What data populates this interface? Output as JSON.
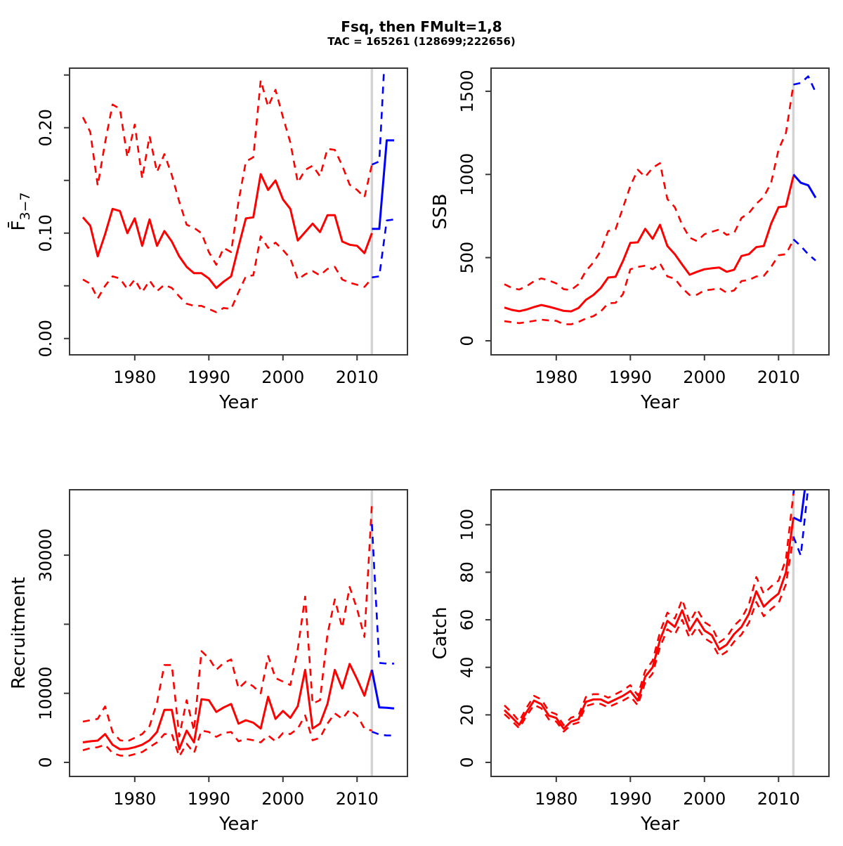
{
  "header": {
    "title": "Fsq, then FMult=1,8",
    "subtitle": "TAC = 165261 (128699;222656)"
  },
  "colors": {
    "history": "#ff0000",
    "forecast": "#0000ff",
    "divider": "#d3d3d3",
    "frame": "#383838"
  },
  "forecast_start_year": 2012,
  "chart_data": [
    {
      "type": "line",
      "name": "fbar",
      "panel": "top-left",
      "ylabel_main": "F̄",
      "ylabel_sub": "3−7",
      "xlabel": "Year",
      "xlim": [
        1971.2,
        2016.8
      ],
      "ylim": [
        -0.0155,
        0.2565
      ],
      "xticks": [
        1980,
        1990,
        2000,
        2010
      ],
      "yticks": [
        0,
        0.05,
        0.1,
        0.15,
        0.2,
        0.25
      ],
      "ytick_labels": [
        "0.00",
        "",
        "0.10",
        "",
        "0.20",
        ""
      ],
      "vline_year": 2012,
      "x_history": {
        "start": 1973,
        "end": 2012
      },
      "x_forecast": {
        "start": 2012,
        "end": 2015
      },
      "series": {
        "median_history": [
          0.115,
          0.107,
          0.078,
          0.099,
          0.123,
          0.121,
          0.1,
          0.114,
          0.088,
          0.113,
          0.088,
          0.102,
          0.092,
          0.078,
          0.068,
          0.062,
          0.062,
          0.057,
          0.048,
          0.054,
          0.059,
          0.087,
          0.114,
          0.115,
          0.156,
          0.141,
          0.15,
          0.132,
          0.123,
          0.093,
          0.101,
          0.109,
          0.101,
          0.117,
          0.117,
          0.092,
          0.089,
          0.088,
          0.081,
          0.1
        ],
        "upper_history": [
          0.21,
          0.196,
          0.145,
          0.186,
          0.222,
          0.218,
          0.172,
          0.203,
          0.152,
          0.192,
          0.158,
          0.175,
          0.155,
          0.13,
          0.108,
          0.105,
          0.1,
          0.082,
          0.07,
          0.086,
          0.082,
          0.13,
          0.168,
          0.172,
          0.245,
          0.22,
          0.236,
          0.21,
          0.186,
          0.148,
          0.16,
          0.164,
          0.154,
          0.18,
          0.179,
          0.164,
          0.146,
          0.141,
          0.134,
          0.165
        ],
        "lower_history": [
          0.056,
          0.052,
          0.038,
          0.05,
          0.059,
          0.057,
          0.047,
          0.056,
          0.044,
          0.055,
          0.045,
          0.051,
          0.048,
          0.04,
          0.033,
          0.031,
          0.031,
          0.028,
          0.025,
          0.029,
          0.028,
          0.044,
          0.059,
          0.06,
          0.097,
          0.086,
          0.091,
          0.084,
          0.076,
          0.056,
          0.061,
          0.064,
          0.06,
          0.066,
          0.068,
          0.056,
          0.053,
          0.051,
          0.049,
          0.057
        ],
        "median_forecast": [
          0.104,
          0.104,
          0.188,
          0.188
        ],
        "upper_forecast": [
          0.165,
          0.168,
          0.305,
          0.305
        ],
        "lower_forecast": [
          0.058,
          0.059,
          0.112,
          0.113
        ]
      }
    },
    {
      "type": "line",
      "name": "ssb",
      "panel": "top-right",
      "ylabel_main": "SSB",
      "ylabel_sub": "",
      "xlabel": "Year",
      "xlim": [
        1971.2,
        2016.8
      ],
      "ylim": [
        -84.5,
        1639
      ],
      "xticks": [
        1980,
        1990,
        2000,
        2010
      ],
      "yticks": [
        0,
        500,
        1000,
        1500
      ],
      "ytick_labels": [
        "0",
        "500",
        "1000",
        "1500"
      ],
      "vline_year": 2012,
      "x_history": {
        "start": 1973,
        "end": 2012
      },
      "x_forecast": {
        "start": 2012,
        "end": 2015
      },
      "series": {
        "median_history": [
          200,
          186,
          178,
          188,
          203,
          215,
          205,
          193,
          180,
          177,
          197,
          246,
          275,
          317,
          380,
          385,
          480,
          589,
          592,
          673,
          613,
          697,
          570,
          521,
          458,
          397,
          415,
          430,
          436,
          440,
          415,
          427,
          510,
          521,
          563,
          570,
          704,
          803,
          808,
          990
        ],
        "upper_history": [
          340,
          318,
          308,
          328,
          358,
          375,
          363,
          345,
          310,
          305,
          340,
          420,
          470,
          540,
          660,
          670,
          800,
          930,
          1028,
          985,
          1040,
          1068,
          852,
          803,
          697,
          620,
          599,
          641,
          655,
          669,
          637,
          648,
          739,
          768,
          824,
          865,
          950,
          1150,
          1250,
          1540
        ],
        "lower_history": [
          118,
          112,
          106,
          112,
          120,
          127,
          122,
          120,
          100,
          99,
          113,
          134,
          148,
          176,
          225,
          228,
          280,
          430,
          444,
          451,
          430,
          465,
          387,
          373,
          317,
          275,
          277,
          303,
          308,
          317,
          289,
          303,
          359,
          366,
          387,
          390,
          444,
          514,
          521,
          606
        ],
        "median_forecast": [
          1000,
          950,
          935,
          860
        ],
        "upper_forecast": [
          1540,
          1550,
          1590,
          1495
        ],
        "lower_forecast": [
          610,
          570,
          520,
          483
        ]
      }
    },
    {
      "type": "line",
      "name": "recruitment",
      "panel": "bottom-left",
      "ylabel_main": "Recruitment",
      "ylabel_sub": "",
      "xlabel": "Year",
      "xlim": [
        1971.2,
        2016.8
      ],
      "ylim": [
        -2035,
        39471
      ],
      "xticks": [
        1980,
        1990,
        2000,
        2010
      ],
      "yticks": [
        0,
        10000,
        20000,
        30000
      ],
      "ytick_labels": [
        "0",
        "10000",
        "",
        "30000"
      ],
      "vline_year": 2012,
      "x_history": {
        "start": 1973,
        "end": 2012
      },
      "x_forecast": {
        "start": 2012,
        "end": 2015
      },
      "series": {
        "median_history": [
          2900,
          3050,
          3150,
          4100,
          2550,
          1900,
          1950,
          2200,
          2550,
          3200,
          4400,
          7600,
          7600,
          1900,
          4600,
          2900,
          9150,
          9000,
          7300,
          7950,
          8450,
          5600,
          6100,
          5750,
          4900,
          9500,
          6300,
          7450,
          6450,
          8150,
          13400,
          4900,
          5600,
          8450,
          13400,
          10700,
          14250,
          12050,
          9650,
          13400
        ],
        "upper_history": [
          5900,
          6100,
          6300,
          8100,
          4400,
          3200,
          3050,
          3550,
          4100,
          5250,
          8650,
          14100,
          14100,
          3750,
          9000,
          4600,
          16100,
          15100,
          13400,
          14400,
          14900,
          10700,
          11700,
          11000,
          10000,
          15400,
          12200,
          11700,
          11200,
          16450,
          24000,
          8500,
          9000,
          18500,
          23600,
          19500,
          25400,
          22200,
          18150,
          37500
        ],
        "lower_history": [
          1750,
          2050,
          2200,
          2550,
          1350,
          1000,
          900,
          1200,
          1500,
          2200,
          2900,
          4100,
          4100,
          850,
          2700,
          1350,
          4600,
          4400,
          3700,
          4250,
          4400,
          3050,
          3400,
          3200,
          2900,
          3900,
          3050,
          4250,
          4100,
          4900,
          6800,
          3200,
          3550,
          5600,
          7100,
          6300,
          7650,
          6800,
          4900,
          4600
        ],
        "median_forecast": [
          13400,
          7950,
          7900,
          7800
        ],
        "upper_forecast": [
          34500,
          14400,
          14300,
          14300
        ],
        "lower_forecast": [
          4450,
          4050,
          3900,
          3900
        ]
      }
    },
    {
      "type": "line",
      "name": "catch",
      "panel": "bottom-right",
      "ylabel_main": "Catch",
      "ylabel_sub": "",
      "xlabel": "Year",
      "xlim": [
        1971.2,
        2016.8
      ],
      "ylim": [
        -5.9,
        114.7
      ],
      "xticks": [
        1980,
        1990,
        2000,
        2010
      ],
      "yticks": [
        0,
        20,
        40,
        60,
        80,
        100
      ],
      "ytick_labels": [
        "0",
        "20",
        "40",
        "60",
        "80",
        "100"
      ],
      "vline_year": 2012,
      "x_history": {
        "start": 1973,
        "end": 2012
      },
      "x_forecast": {
        "start": 2012,
        "end": 2015
      },
      "series": {
        "median_history": [
          22.0,
          19.0,
          15.8,
          21.2,
          26.0,
          24.5,
          19.7,
          18.7,
          14.2,
          17.2,
          18.2,
          25.5,
          26.5,
          26.5,
          25.0,
          26.5,
          28.0,
          30.0,
          26.0,
          36.0,
          40.0,
          51.5,
          59.5,
          57.0,
          64.0,
          55.5,
          60.5,
          55.5,
          53.5,
          47.5,
          49.5,
          54.0,
          57.0,
          62.5,
          72.0,
          65.5,
          68.5,
          71.0,
          80.0,
          103.0
        ],
        "upper_history": [
          24.0,
          21.0,
          17.3,
          23.0,
          28.0,
          26.5,
          21.5,
          20.3,
          15.7,
          18.8,
          19.8,
          27.5,
          28.7,
          28.7,
          27.2,
          28.7,
          30.3,
          32.5,
          28.2,
          38.5,
          42.8,
          54.8,
          63.0,
          60.5,
          68.5,
          59.0,
          64.5,
          59.0,
          57.0,
          50.5,
          52.7,
          57.5,
          60.5,
          66.5,
          78.0,
          71.0,
          74.0,
          76.5,
          85.5,
          113.0
        ],
        "lower_history": [
          20.3,
          17.5,
          14.4,
          19.6,
          24.2,
          22.7,
          18.1,
          17.2,
          13.0,
          15.8,
          16.8,
          23.7,
          24.6,
          24.6,
          23.2,
          24.6,
          26.0,
          27.8,
          24.0,
          33.6,
          37.4,
          48.5,
          56.0,
          53.8,
          60.0,
          52.3,
          57.0,
          52.3,
          50.3,
          44.6,
          46.6,
          50.8,
          53.8,
          58.8,
          67.5,
          61.5,
          64.5,
          67.0,
          75.0,
          95.0
        ],
        "median_forecast": [
          103,
          101.5,
          126,
          126
        ],
        "upper_forecast": [
          113,
          135,
          140,
          140
        ],
        "lower_forecast": [
          95,
          87,
          116,
          114.4
        ]
      }
    }
  ]
}
